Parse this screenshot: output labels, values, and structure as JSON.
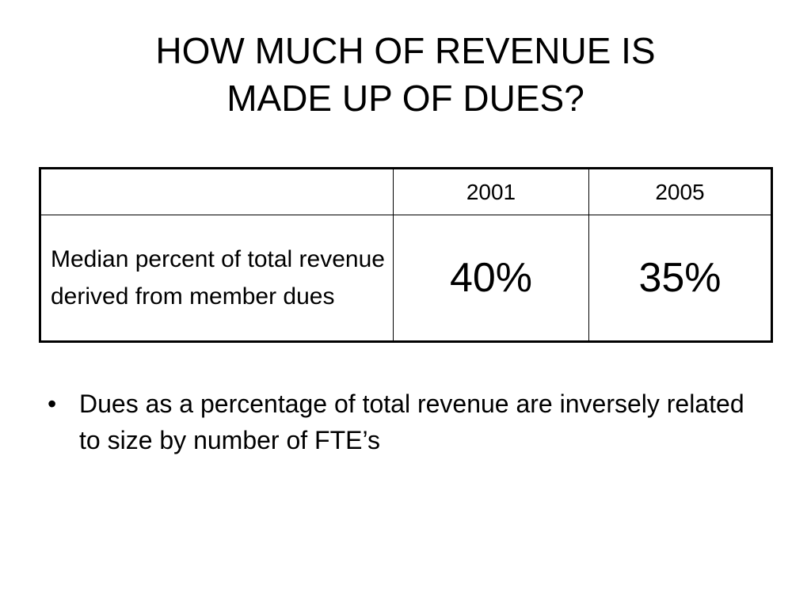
{
  "title": {
    "line1": "HOW MUCH OF REVENUE IS",
    "line2": "MADE UP OF DUES?"
  },
  "table": {
    "header": {
      "corner": "",
      "year1": "2001",
      "year2": "2005"
    },
    "row": {
      "label": "Median percent of total revenue derived from member dues",
      "value1": "40%",
      "value2": "35%"
    }
  },
  "bullets": [
    {
      "marker": "•",
      "text": "Dues as a percentage of total revenue are inversely related to size by number of FTE’s"
    }
  ]
}
